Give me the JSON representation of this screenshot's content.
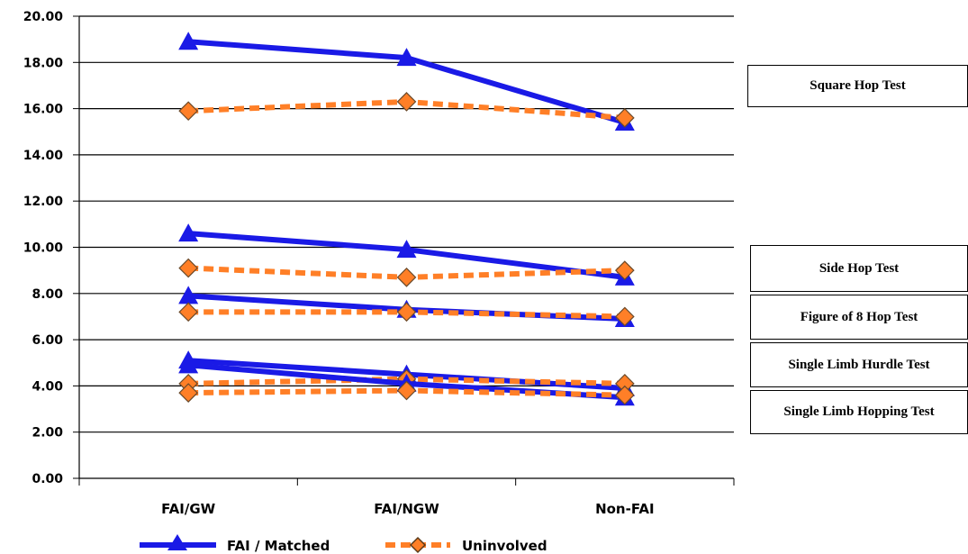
{
  "chart_data": {
    "type": "line",
    "categories": [
      "FAI/GW",
      "FAI/NGW",
      "Non-FAI"
    ],
    "ylim": [
      0,
      20
    ],
    "ytick_labels": [
      "0.00",
      "2.00",
      "4.00",
      "6.00",
      "8.00",
      "10.00",
      "12.00",
      "14.00",
      "16.00",
      "18.00",
      "20.00"
    ],
    "grid": true,
    "legend": {
      "placement": "bottom",
      "entries": [
        {
          "label": "FAI / Matched",
          "color": "#1a1ae6",
          "marker": "triangle",
          "dash": "solid"
        },
        {
          "label": "Uninvolved",
          "color": "#ff7f27",
          "marker": "diamond",
          "dash": "dashed"
        }
      ]
    },
    "tests": [
      {
        "name": "Square Hop Test",
        "series": [
          {
            "group": "FAI / Matched",
            "values": [
              18.9,
              18.2,
              15.4
            ]
          },
          {
            "group": "Uninvolved",
            "values": [
              15.9,
              16.3,
              15.6
            ]
          }
        ]
      },
      {
        "name": "Side Hop Test",
        "series": [
          {
            "group": "FAI / Matched",
            "values": [
              10.6,
              9.9,
              8.7
            ]
          },
          {
            "group": "Uninvolved",
            "values": [
              9.1,
              8.7,
              9.0
            ]
          }
        ]
      },
      {
        "name": "Figure of 8 Hop Test",
        "series": [
          {
            "group": "FAI / Matched",
            "values": [
              7.9,
              7.3,
              6.9
            ]
          },
          {
            "group": "Uninvolved",
            "values": [
              7.2,
              7.2,
              7.0
            ]
          }
        ]
      },
      {
        "name": "Single Limb Hurdle Test",
        "series": [
          {
            "group": "FAI / Matched",
            "values": [
              5.1,
              4.5,
              3.9
            ]
          },
          {
            "group": "Uninvolved",
            "values": [
              4.1,
              4.3,
              4.1
            ]
          }
        ]
      },
      {
        "name": "Single Limb Hopping Test",
        "series": [
          {
            "group": "FAI / Matched",
            "values": [
              4.9,
              4.1,
              3.5
            ]
          },
          {
            "group": "Uninvolved",
            "values": [
              3.7,
              3.8,
              3.6
            ]
          }
        ]
      }
    ]
  }
}
